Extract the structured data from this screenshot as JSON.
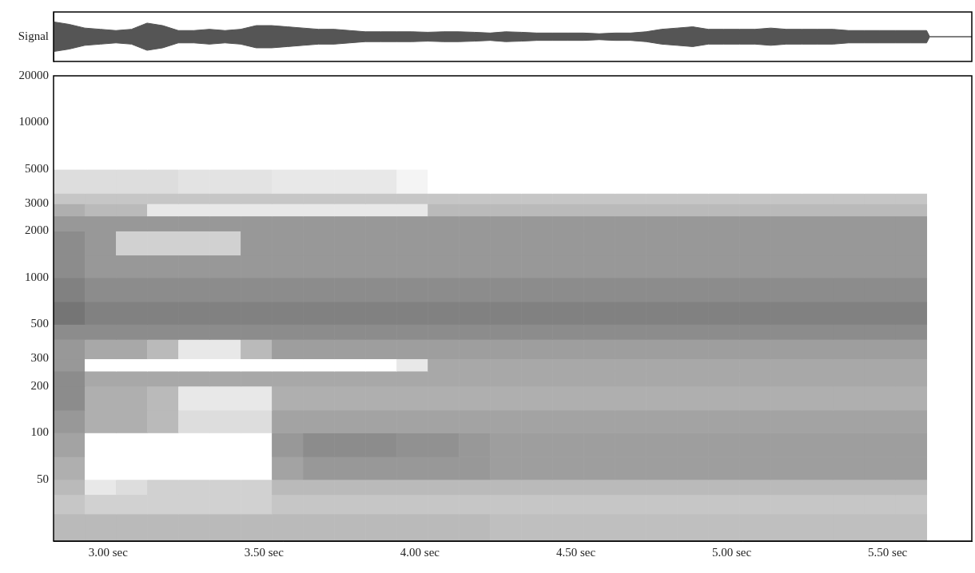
{
  "chart_data": [
    {
      "type": "area",
      "color": "#555555",
      "grid": false,
      "tick_labels": "y",
      "x": [
        2.825,
        2.875,
        2.925,
        2.975,
        3.025,
        3.075,
        3.125,
        3.175,
        3.225,
        3.275,
        3.325,
        3.375,
        3.425,
        3.475,
        3.525,
        3.575,
        3.625,
        3.675,
        3.725,
        3.775,
        3.825,
        3.875,
        3.925,
        3.975,
        4.025,
        4.075,
        4.125,
        4.175,
        4.225,
        4.275,
        4.325,
        4.375,
        4.425,
        4.475,
        4.525,
        4.575,
        4.625,
        4.675,
        4.725,
        4.775,
        4.825,
        4.875,
        4.925,
        4.975,
        5.025,
        5.075,
        5.125,
        5.175,
        5.225,
        5.275,
        5.325,
        5.375,
        5.425,
        5.475,
        5.525,
        5.575,
        5.625,
        5.635,
        5.77
      ],
      "values": [
        0.6,
        0.5,
        0.35,
        0.3,
        0.25,
        0.3,
        0.55,
        0.45,
        0.25,
        0.25,
        0.3,
        0.25,
        0.3,
        0.45,
        0.45,
        0.4,
        0.35,
        0.3,
        0.3,
        0.25,
        0.2,
        0.2,
        0.2,
        0.2,
        0.18,
        0.2,
        0.2,
        0.18,
        0.15,
        0.2,
        0.18,
        0.15,
        0.15,
        0.15,
        0.15,
        0.12,
        0.15,
        0.15,
        0.2,
        0.3,
        0.35,
        0.4,
        0.3,
        0.3,
        0.3,
        0.3,
        0.35,
        0.3,
        0.3,
        0.3,
        0.3,
        0.25,
        0.25,
        0.25,
        0.25,
        0.25,
        0.25,
        0,
        0
      ],
      "xlim": [
        2.825,
        5.77
      ],
      "ylim": [
        -1,
        1
      ],
      "yticks": [
        {
          "value": 0,
          "label": "Signal"
        }
      ]
    },
    {
      "type": "heatmap",
      "grid": false,
      "log": "y",
      "time_bins": [
        2.825,
        2.925,
        3.025,
        3.125,
        3.225,
        3.325,
        3.425,
        3.525,
        3.625,
        3.725,
        3.825,
        3.925,
        4.025,
        4.125,
        4.225,
        4.325,
        4.425,
        4.525,
        4.625,
        4.725,
        4.825,
        4.925,
        5.025,
        5.125,
        5.225,
        5.325,
        5.425,
        5.525,
        5.625
      ],
      "freq_bins": [
        20,
        30,
        40,
        50,
        70,
        100,
        140,
        200,
        250,
        300,
        400,
        500,
        700,
        1000,
        1400,
        2000,
        2500,
        3000,
        3500,
        5000,
        20000
      ],
      "cells": [
        [
          0.3,
          0.3,
          0.3,
          0.3,
          0.3,
          0.3,
          0.3,
          0.3,
          0.3,
          0.3,
          0.3,
          0.3,
          0.3,
          0.3,
          0.28,
          0.28,
          0.28,
          0.28,
          0.28,
          0.28,
          0.28,
          0.28,
          0.28,
          0.28,
          0.28,
          0.28,
          0.28,
          0.28
        ],
        [
          0.25,
          0.2,
          0.2,
          0.2,
          0.2,
          0.2,
          0.2,
          0.25,
          0.25,
          0.25,
          0.25,
          0.25,
          0.25,
          0.25,
          0.25,
          0.25,
          0.25,
          0.25,
          0.25,
          0.25,
          0.25,
          0.25,
          0.25,
          0.25,
          0.25,
          0.25,
          0.25,
          0.25
        ],
        [
          0.3,
          0.1,
          0.15,
          0.2,
          0.2,
          0.2,
          0.2,
          0.3,
          0.3,
          0.3,
          0.3,
          0.3,
          0.3,
          0.3,
          0.3,
          0.3,
          0.3,
          0.3,
          0.3,
          0.3,
          0.3,
          0.3,
          0.3,
          0.3,
          0.3,
          0.3,
          0.3,
          0.3
        ],
        [
          0.35,
          0,
          0,
          0,
          0,
          0,
          0,
          0.4,
          0.45,
          0.45,
          0.45,
          0.45,
          0.45,
          0.45,
          0.42,
          0.42,
          0.42,
          0.42,
          0.42,
          0.42,
          0.42,
          0.42,
          0.42,
          0.42,
          0.42,
          0.42,
          0.42,
          0.42
        ],
        [
          0.4,
          0,
          0,
          0,
          0,
          0,
          0,
          0.45,
          0.5,
          0.5,
          0.5,
          0.48,
          0.48,
          0.45,
          0.42,
          0.42,
          0.42,
          0.42,
          0.42,
          0.42,
          0.42,
          0.42,
          0.42,
          0.42,
          0.42,
          0.42,
          0.42,
          0.42
        ],
        [
          0.45,
          0.35,
          0.35,
          0.3,
          0.15,
          0.15,
          0.15,
          0.4,
          0.4,
          0.4,
          0.4,
          0.4,
          0.4,
          0.4,
          0.4,
          0.4,
          0.4,
          0.4,
          0.4,
          0.4,
          0.4,
          0.4,
          0.4,
          0.4,
          0.4,
          0.4,
          0.4,
          0.4
        ],
        [
          0.5,
          0.35,
          0.35,
          0.3,
          0.1,
          0.1,
          0.1,
          0.35,
          0.35,
          0.35,
          0.35,
          0.35,
          0.35,
          0.35,
          0.35,
          0.35,
          0.35,
          0.35,
          0.35,
          0.35,
          0.35,
          0.35,
          0.35,
          0.35,
          0.35,
          0.35,
          0.35,
          0.35
        ],
        [
          0.5,
          0.38,
          0.38,
          0.38,
          0.38,
          0.38,
          0.38,
          0.38,
          0.38,
          0.38,
          0.38,
          0.38,
          0.38,
          0.38,
          0.38,
          0.38,
          0.38,
          0.38,
          0.38,
          0.38,
          0.38,
          0.38,
          0.38,
          0.38,
          0.38,
          0.38,
          0.38,
          0.38
        ],
        [
          0.45,
          0,
          0,
          0,
          0,
          0,
          0,
          0,
          0,
          0,
          0,
          0.1,
          0.38,
          0.38,
          0.38,
          0.38,
          0.38,
          0.38,
          0.38,
          0.38,
          0.38,
          0.38,
          0.38,
          0.38,
          0.38,
          0.38,
          0.38,
          0.38
        ],
        [
          0.45,
          0.38,
          0.38,
          0.3,
          0.1,
          0.1,
          0.3,
          0.42,
          0.42,
          0.42,
          0.42,
          0.42,
          0.42,
          0.42,
          0.42,
          0.42,
          0.42,
          0.42,
          0.42,
          0.42,
          0.42,
          0.42,
          0.42,
          0.42,
          0.42,
          0.42,
          0.42,
          0.42
        ],
        [
          0.5,
          0.5,
          0.5,
          0.5,
          0.5,
          0.5,
          0.5,
          0.5,
          0.5,
          0.5,
          0.5,
          0.5,
          0.5,
          0.5,
          0.5,
          0.5,
          0.5,
          0.5,
          0.5,
          0.5,
          0.5,
          0.5,
          0.5,
          0.5,
          0.5,
          0.5,
          0.5,
          0.5
        ],
        [
          0.6,
          0.55,
          0.55,
          0.55,
          0.55,
          0.55,
          0.55,
          0.55,
          0.55,
          0.55,
          0.55,
          0.55,
          0.55,
          0.55,
          0.55,
          0.55,
          0.55,
          0.55,
          0.55,
          0.55,
          0.55,
          0.55,
          0.55,
          0.55,
          0.55,
          0.55,
          0.55,
          0.55
        ],
        [
          0.55,
          0.5,
          0.5,
          0.5,
          0.5,
          0.5,
          0.5,
          0.5,
          0.5,
          0.5,
          0.5,
          0.5,
          0.5,
          0.5,
          0.5,
          0.5,
          0.5,
          0.5,
          0.5,
          0.5,
          0.5,
          0.5,
          0.5,
          0.5,
          0.5,
          0.5,
          0.5,
          0.5
        ],
        [
          0.5,
          0.45,
          0.45,
          0.45,
          0.45,
          0.45,
          0.45,
          0.45,
          0.45,
          0.45,
          0.45,
          0.45,
          0.45,
          0.45,
          0.45,
          0.45,
          0.45,
          0.45,
          0.45,
          0.45,
          0.45,
          0.45,
          0.45,
          0.45,
          0.45,
          0.45,
          0.45,
          0.45
        ],
        [
          0.5,
          0.45,
          0.2,
          0.2,
          0.2,
          0.2,
          0.45,
          0.45,
          0.45,
          0.45,
          0.45,
          0.45,
          0.45,
          0.45,
          0.45,
          0.45,
          0.45,
          0.45,
          0.45,
          0.45,
          0.45,
          0.45,
          0.45,
          0.45,
          0.45,
          0.45,
          0.45,
          0.45
        ],
        [
          0.45,
          0.45,
          0.45,
          0.45,
          0.45,
          0.45,
          0.45,
          0.45,
          0.45,
          0.45,
          0.45,
          0.45,
          0.45,
          0.45,
          0.45,
          0.45,
          0.45,
          0.45,
          0.45,
          0.45,
          0.45,
          0.45,
          0.45,
          0.45,
          0.45,
          0.45,
          0.45,
          0.45
        ],
        [
          0.35,
          0.3,
          0.3,
          0.1,
          0.1,
          0.1,
          0.1,
          0.1,
          0.1,
          0.1,
          0.1,
          0.1,
          0.3,
          0.3,
          0.3,
          0.3,
          0.3,
          0.3,
          0.3,
          0.3,
          0.3,
          0.3,
          0.3,
          0.3,
          0.3,
          0.3,
          0.3,
          0.3
        ],
        [
          0.25,
          0.25,
          0.25,
          0.25,
          0.25,
          0.25,
          0.25,
          0.25,
          0.25,
          0.25,
          0.25,
          0.25,
          0.25,
          0.25,
          0.25,
          0.25,
          0.25,
          0.25,
          0.25,
          0.25,
          0.25,
          0.25,
          0.25,
          0.25,
          0.25,
          0.25,
          0.25,
          0.25
        ],
        [
          0.15,
          0.15,
          0.15,
          0.15,
          0.12,
          0.12,
          0.12,
          0.1,
          0.1,
          0.1,
          0.1,
          0.05,
          0,
          0,
          0,
          0,
          0,
          0,
          0,
          0,
          0,
          0,
          0,
          0,
          0,
          0,
          0,
          0
        ],
        [
          0,
          0,
          0,
          0,
          0,
          0,
          0,
          0,
          0,
          0,
          0,
          0,
          0,
          0,
          0,
          0,
          0,
          0,
          0,
          0,
          0,
          0,
          0,
          0,
          0,
          0,
          0,
          0
        ]
      ],
      "xlim": [
        2.825,
        5.77
      ],
      "xticks": [
        {
          "value": 3,
          "label": "3.00 sec"
        },
        {
          "value": 3.5,
          "label": "3.50 sec"
        },
        {
          "value": 4,
          "label": "4.00 sec"
        },
        {
          "value": 4.5,
          "label": "4.50 sec"
        },
        {
          "value": 5,
          "label": "5.00 sec"
        },
        {
          "value": 5.5,
          "label": "5.50 sec"
        }
      ],
      "ylim": [
        20,
        20000
      ],
      "yticks": [
        50,
        100,
        200,
        300,
        500,
        1000,
        2000,
        3000,
        5000,
        10000,
        20000
      ]
    }
  ]
}
